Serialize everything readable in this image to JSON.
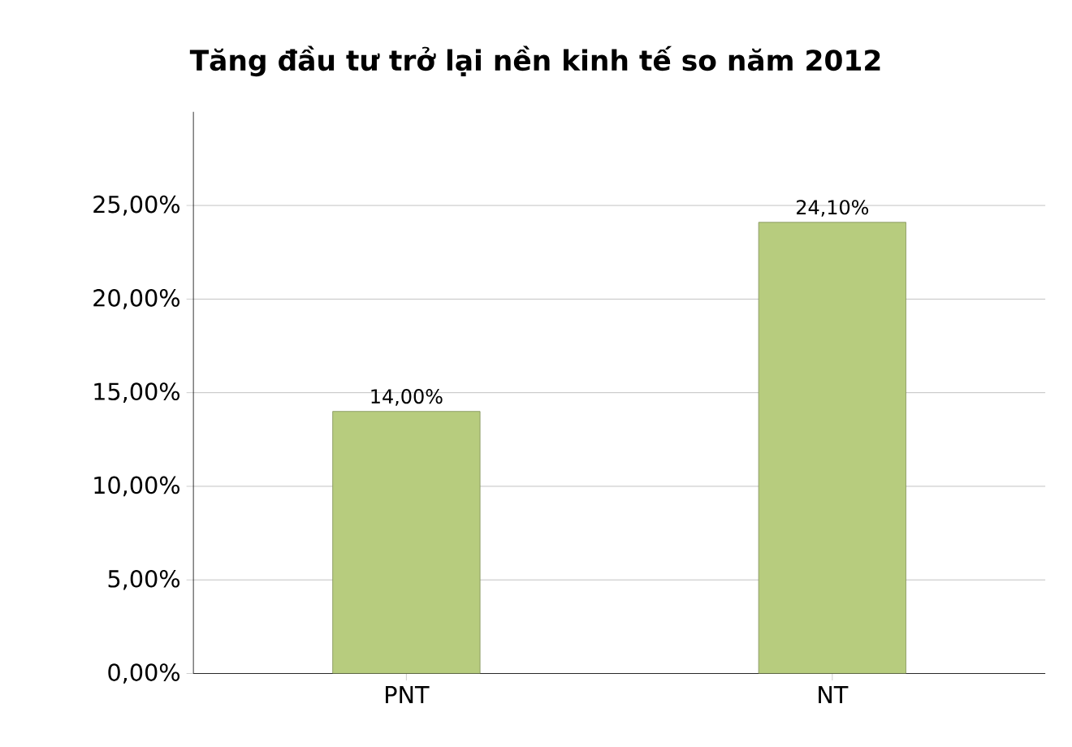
{
  "chart_data": {
    "type": "bar",
    "title": "Tăng đầu tư trở lại nền kinh tế so năm 2012",
    "categories": [
      "PNT",
      "NT"
    ],
    "values": [
      14.0,
      24.1
    ],
    "value_labels": [
      "14,00%",
      "24,10%"
    ],
    "color": "#b7cc7e",
    "ylim": [
      0,
      30
    ],
    "yticks": [
      {
        "value": 0,
        "label": "0,00%"
      },
      {
        "value": 5,
        "label": "5,00%"
      },
      {
        "value": 10,
        "label": "10,00%"
      },
      {
        "value": 15,
        "label": "15,00%"
      },
      {
        "value": 20,
        "label": "20,00%"
      },
      {
        "value": 25,
        "label": "25,00%"
      }
    ],
    "grid": "y"
  }
}
